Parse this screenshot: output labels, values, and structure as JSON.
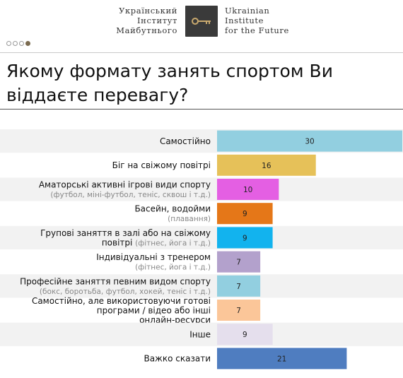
{
  "header": {
    "logo_ua": [
      "Український",
      "Інститут",
      "Майбутнього"
    ],
    "logo_en": [
      "Ukrainian",
      "Institute",
      "for the Future"
    ],
    "logo_icon": "key-icon",
    "pager_dots": 4,
    "pager_active": 4
  },
  "chart_data": {
    "type": "bar",
    "orientation": "horizontal",
    "title": "Якому формату занять спортом Ви віддаєте перевагу?",
    "xlabel": "",
    "ylabel": "",
    "xlim": [
      0,
      30
    ],
    "grid": false,
    "legend": "none",
    "categories": [
      {
        "label": "Самостійно",
        "sublabel": ""
      },
      {
        "label": "Біг на свіжому повітрі",
        "sublabel": ""
      },
      {
        "label": "Аматорські активні ігрові види спорту",
        "sublabel": "(футбол, міні-футбол, теніс, сквош і т.д.)"
      },
      {
        "label": "Басейн, водойми",
        "sublabel": "(плавання)"
      },
      {
        "label": "Групові заняття в залі або на свіжому повітрі",
        "sublabel": "(фітнес, йога і т.д.)"
      },
      {
        "label": "Індивідуальні з тренером",
        "sublabel": "(фітнес, йога і т.д.)"
      },
      {
        "label": "Професійне заняття певним видом спорту",
        "sublabel": "(бокс, боротьба, футбол, хокей, теніс і т.д.)"
      },
      {
        "label": "Самостійно, але використовуючи готові програми / відео або інші онлайн-ресурси",
        "sublabel": ""
      },
      {
        "label": "Інше",
        "sublabel": ""
      },
      {
        "label": "Важко сказати",
        "sublabel": ""
      }
    ],
    "values": [
      30,
      16,
      10,
      9,
      9,
      7,
      7,
      7,
      9,
      21
    ],
    "colors": [
      "#92cfe0",
      "#e6c159",
      "#e45fe3",
      "#e57718",
      "#12b3ee",
      "#b3a1cc",
      "#92cfe0",
      "#fbc699",
      "#e5dfed",
      "#4f7dc0"
    ],
    "label_text_color": "#222222"
  }
}
